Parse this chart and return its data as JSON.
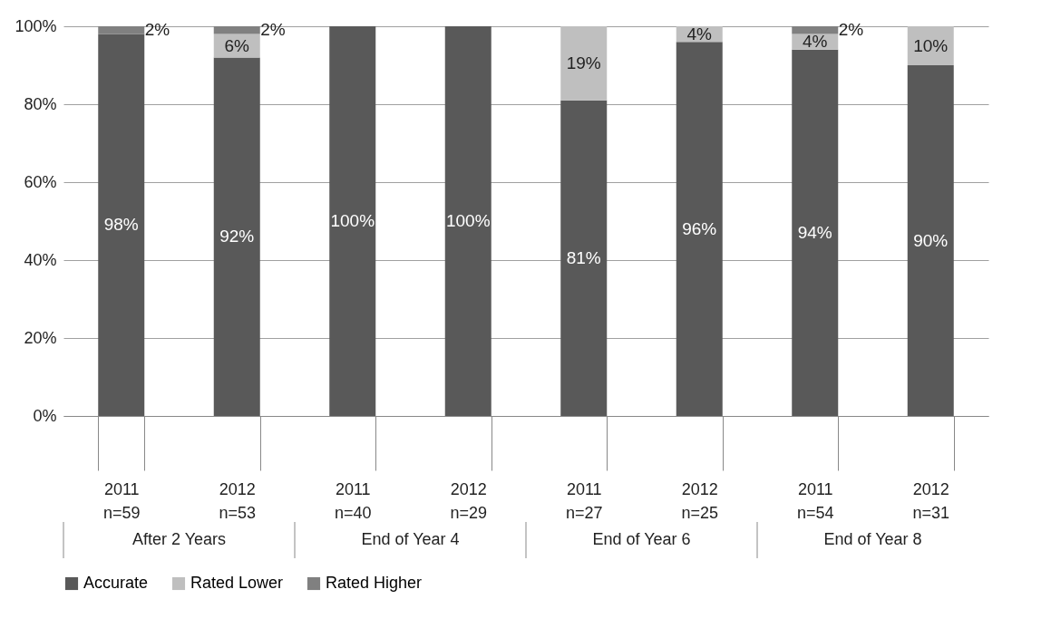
{
  "chart_data": {
    "type": "bar",
    "stacked": true,
    "categories": [
      "2011 n=59",
      "2012 n=53",
      "2011 n=40",
      "2012 n=29",
      "2011 n=27",
      "2012 n=25",
      "2011 n=54",
      "2012 n=31"
    ],
    "annotations": [
      "After 2 Years",
      "End of Year 4",
      "End of Year 6",
      "End of Year 8"
    ],
    "series": [
      {
        "name": "Accurate",
        "color": "#595959",
        "values": [
          98,
          92,
          100,
          100,
          81,
          96,
          94,
          90
        ],
        "value_labels": [
          "98%",
          "92%",
          "100%",
          "100%",
          "81%",
          "96%",
          "94%",
          "90%"
        ]
      },
      {
        "name": "Rated Lower",
        "color": "#bfbfbf",
        "values": [
          0,
          6,
          0,
          0,
          19,
          4,
          4,
          10
        ],
        "value_labels": [
          null,
          "6%",
          null,
          null,
          "19%",
          "4%",
          "4%",
          "10%"
        ]
      },
      {
        "name": "Rated Higher",
        "color": "#808080",
        "values": [
          2,
          2,
          0,
          0,
          0,
          0,
          2,
          0
        ],
        "value_labels": [
          "2%",
          "2%",
          null,
          null,
          null,
          null,
          "2%",
          null
        ]
      }
    ],
    "ylim": [
      0,
      100
    ],
    "yticks": [
      {
        "value": 0,
        "label": "0%"
      },
      {
        "value": 20,
        "label": "20%"
      },
      {
        "value": 40,
        "label": "40%"
      },
      {
        "value": 60,
        "label": "60%"
      },
      {
        "value": 80,
        "label": "80%"
      },
      {
        "value": 100,
        "label": "100%"
      }
    ],
    "grid": "y",
    "legend": "bottom"
  }
}
